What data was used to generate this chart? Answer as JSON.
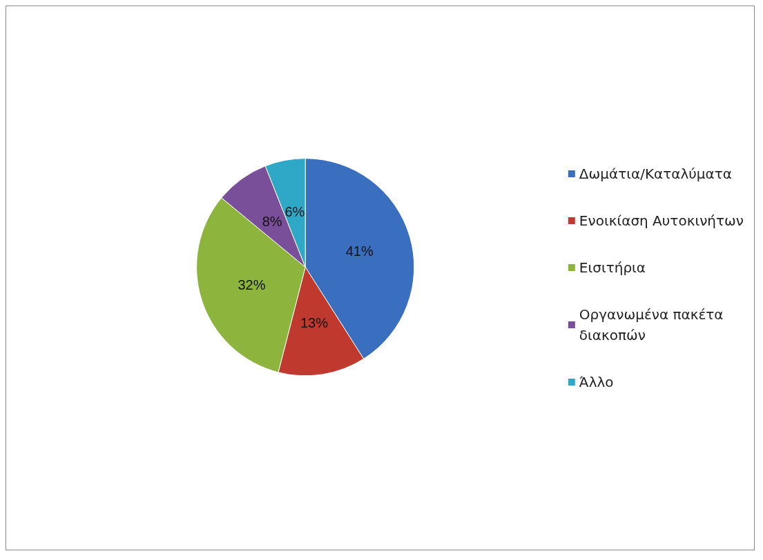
{
  "chart_data": {
    "type": "pie",
    "categories": [
      "Δωμάτια/Καταλύματα",
      "Ενοικίαση Αυτοκινήτων",
      "Εισιτήρια",
      "Οργανωμένα πακέτα διακοπών",
      "Άλλο"
    ],
    "values": [
      41,
      13,
      32,
      8,
      6
    ],
    "colors": [
      "#3a6fbf",
      "#c0392f",
      "#8db43c",
      "#7a4f9a",
      "#2fa8c8"
    ],
    "value_labels": [
      "41%",
      "13%",
      "32%",
      "8%",
      "6%"
    ],
    "legend": "right"
  }
}
